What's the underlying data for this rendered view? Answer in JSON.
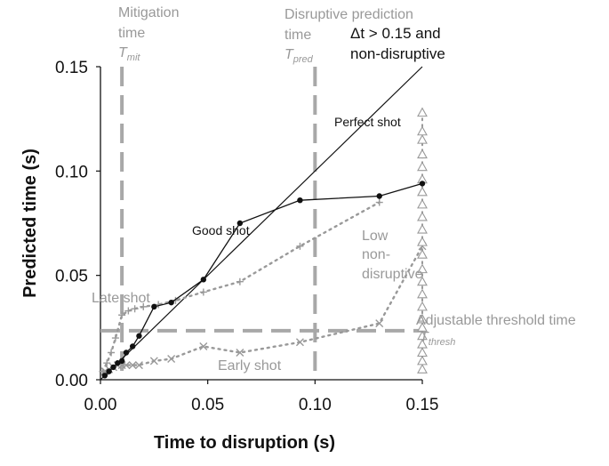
{
  "chart_data": {
    "type": "line",
    "xlabel": "Time to disruption (s)",
    "ylabel": "Predicted time (s)",
    "xlim": [
      0.0,
      0.15
    ],
    "ylim": [
      0.0,
      0.15
    ],
    "xticks": [
      "0.00",
      "0.05",
      "0.10",
      "0.15"
    ],
    "yticks": [
      "0.00",
      "0.05",
      "0.10",
      "0.15"
    ],
    "xtick_values": [
      0.0,
      0.05,
      0.1,
      0.15
    ],
    "ytick_values": [
      0.0,
      0.05,
      0.1,
      0.15
    ],
    "grid": false,
    "perfect_line": {
      "label": "Perfect shot",
      "x": [
        0.0,
        0.15
      ],
      "y": [
        0.0,
        0.15
      ]
    },
    "series": [
      {
        "name": "Good shot",
        "marker": "dot",
        "color": "#111111",
        "x": [
          0.002,
          0.004,
          0.006,
          0.008,
          0.01,
          0.012,
          0.015,
          0.018,
          0.025,
          0.033,
          0.048,
          0.065,
          0.093,
          0.13,
          0.15
        ],
        "y": [
          0.002,
          0.004,
          0.006,
          0.008,
          0.009,
          0.013,
          0.016,
          0.021,
          0.035,
          0.037,
          0.048,
          0.075,
          0.086,
          0.088,
          0.094
        ]
      },
      {
        "name": "Late shot",
        "marker": "plus",
        "color": "#999999",
        "x": [
          0.001,
          0.003,
          0.005,
          0.007,
          0.01,
          0.013,
          0.016,
          0.02,
          0.027,
          0.035,
          0.048,
          0.065,
          0.093,
          0.13
        ],
        "y": [
          0.004,
          0.008,
          0.013,
          0.02,
          0.031,
          0.033,
          0.034,
          0.035,
          0.036,
          0.038,
          0.042,
          0.047,
          0.064,
          0.085
        ]
      },
      {
        "name": "Early shot",
        "marker": "x",
        "color": "#999999",
        "x": [
          0.002,
          0.004,
          0.006,
          0.008,
          0.01,
          0.012,
          0.015,
          0.018,
          0.025,
          0.033,
          0.048,
          0.065,
          0.093,
          0.13,
          0.15
        ],
        "y": [
          0.004,
          0.005,
          0.006,
          0.007,
          0.007,
          0.007,
          0.007,
          0.007,
          0.009,
          0.01,
          0.016,
          0.013,
          0.018,
          0.027,
          0.064
        ]
      },
      {
        "name": "Δt > 0.15 and non-disruptive",
        "marker": "triangle",
        "color": "#999999",
        "x": [
          0.15,
          0.15,
          0.15,
          0.15,
          0.15,
          0.15,
          0.15,
          0.15,
          0.15,
          0.15,
          0.15,
          0.15,
          0.15,
          0.15,
          0.15,
          0.15,
          0.15,
          0.15,
          0.15,
          0.15,
          0.15,
          0.15,
          0.15
        ],
        "y": [
          0.005,
          0.009,
          0.013,
          0.017,
          0.021,
          0.025,
          0.029,
          0.035,
          0.041,
          0.047,
          0.053,
          0.06,
          0.066,
          0.072,
          0.078,
          0.084,
          0.09,
          0.096,
          0.102,
          0.108,
          0.115,
          0.119,
          0.128
        ]
      }
    ],
    "thresholds": [
      {
        "orientation": "vertical",
        "value": 0.01,
        "label": "Mitigation time",
        "symbol": "T",
        "subscript": "mit"
      },
      {
        "orientation": "vertical",
        "value": 0.1,
        "label_line1": "Disruptive prediction",
        "label_line2": "time",
        "symbol": "T",
        "subscript": "pred"
      },
      {
        "orientation": "horizontal",
        "value": 0.0235,
        "label": "Adjustable threshold time",
        "symbol": "T",
        "subscript": "thresh"
      }
    ],
    "annotations": {
      "mitigation_line1": "Mitigation",
      "mitigation_line2": "time",
      "nondisruptive_line1": "Δt > 0.15 and",
      "nondisruptive_line2": "non-disruptive",
      "low_line1": "Low",
      "low_line2": "non-",
      "low_line3": "disruptive",
      "good_shot": "Good shot",
      "late_shot": "Late shot",
      "early_shot": "Early shot",
      "perfect_shot": "Perfect shot"
    }
  }
}
